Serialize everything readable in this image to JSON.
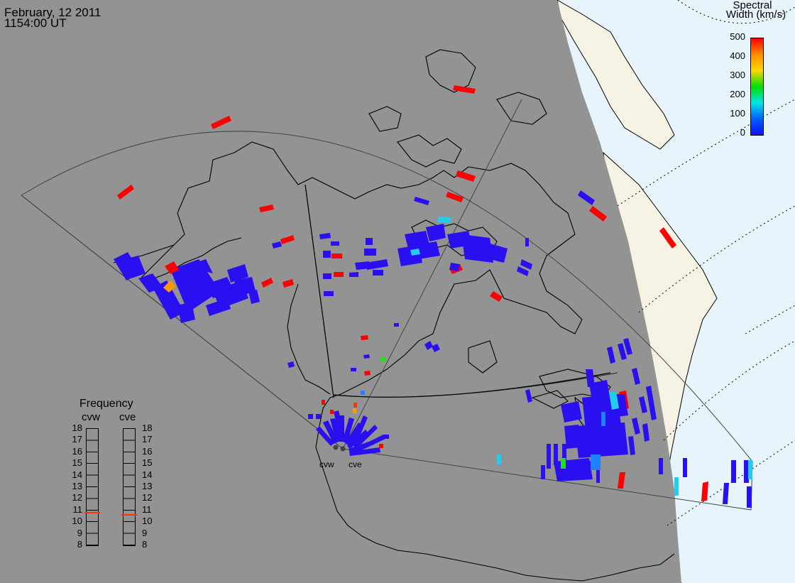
{
  "header": {
    "date": "February, 12 2011",
    "time": "1154:00 UT"
  },
  "colorbar": {
    "title_line1": "Spectral",
    "title_line2": "Width (km/s)",
    "ticks": [
      "500",
      "400",
      "300",
      "200",
      "100",
      "0"
    ],
    "stops": [
      "#ff0000",
      "#ff8c00",
      "#ffd700",
      "#00dd00",
      "#00e5e5",
      "#0060ff",
      "#1010ff"
    ]
  },
  "frequency_panel": {
    "title": "Frequency",
    "radar_left": "cvw",
    "radar_right": "cve",
    "ticks": [
      "18",
      "17",
      "16",
      "15",
      "14",
      "13",
      "12",
      "11",
      "10",
      "9",
      "8"
    ],
    "value_cvw_mhz": 10.8,
    "value_cve_mhz": 10.6,
    "marker_color": "#ff3300"
  },
  "radars": {
    "west": "cvw",
    "east": "cve"
  },
  "colors": {
    "night_shade": "#939393",
    "day_land": "#f6f3e4",
    "day_ocean": "#e8f4fb",
    "low_width": "#2a10f0",
    "high_width": "#ff0000"
  }
}
